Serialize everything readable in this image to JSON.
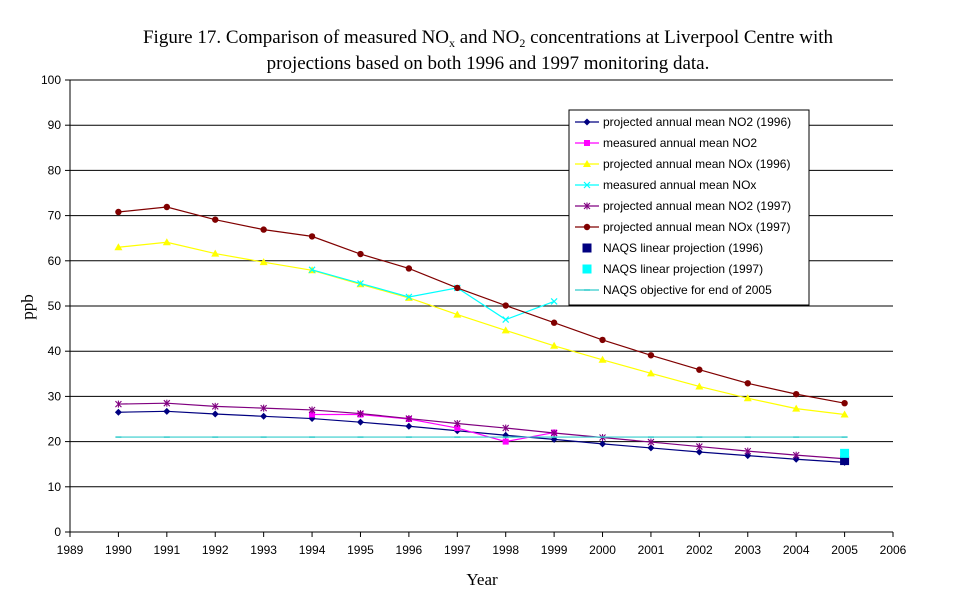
{
  "chart_data": {
    "type": "line",
    "title_line1_prefix": "Figure 17. Comparison of measured NO",
    "title_line1_sub1": "x",
    "title_line1_mid": " and NO",
    "title_line1_sub2": "2",
    "title_line1_suffix": " concentrations at Liverpool Centre with",
    "title_line2": "projections based on both 1996 and 1997 monitoring data.",
    "xlabel": "Year",
    "ylabel": "ppb",
    "xlim": [
      1989,
      2006
    ],
    "ylim": [
      0,
      100
    ],
    "xticks": [
      "1989",
      "1990",
      "1991",
      "1992",
      "1993",
      "1994",
      "1995",
      "1996",
      "1997",
      "1998",
      "1999",
      "2000",
      "2001",
      "2002",
      "2003",
      "2004",
      "2005",
      "2006"
    ],
    "yticks": [
      "0",
      "10",
      "20",
      "30",
      "40",
      "50",
      "60",
      "70",
      "80",
      "90",
      "100"
    ],
    "grid": "horizontal",
    "legend_position": "right",
    "series": [
      {
        "name": "projected annual mean NO2 (1996)",
        "color": "#000080",
        "marker": "diamond",
        "x": [
          1990,
          1991,
          1992,
          1993,
          1994,
          1995,
          1996,
          1997,
          1998,
          1999,
          2000,
          2001,
          2002,
          2003,
          2004,
          2005
        ],
        "y": [
          26.5,
          26.7,
          26.1,
          25.6,
          25.1,
          24.3,
          23.4,
          22.4,
          21.4,
          20.5,
          19.5,
          18.6,
          17.7,
          16.9,
          16.1,
          15.4
        ]
      },
      {
        "name": "measured annual mean NO2",
        "color": "#ff00ff",
        "marker": "square",
        "x": [
          1994,
          1995,
          1996,
          1997,
          1998,
          1999
        ],
        "y": [
          26.0,
          26.0,
          25.0,
          23.0,
          20.0,
          22.0
        ]
      },
      {
        "name": "projected annual mean NOx (1996)",
        "color": "#ffff00",
        "marker": "triangle",
        "x": [
          1990,
          1991,
          1992,
          1993,
          1994,
          1995,
          1996,
          1997,
          1998,
          1999,
          2000,
          2001,
          2002,
          2003,
          2004,
          2005
        ],
        "y": [
          63.0,
          64.1,
          61.6,
          59.7,
          57.9,
          54.8,
          51.8,
          48.1,
          44.6,
          41.2,
          38.1,
          35.1,
          32.2,
          29.6,
          27.3,
          26.0
        ]
      },
      {
        "name": "measured annual mean NOx",
        "color": "#00ffff",
        "marker": "x",
        "x": [
          1994,
          1995,
          1996,
          1997,
          1998,
          1999
        ],
        "y": [
          58.0,
          55.0,
          52.0,
          54.0,
          47.0,
          51.0
        ]
      },
      {
        "name": "projected annual mean NO2 (1997)",
        "color": "#800080",
        "marker": "star",
        "x": [
          1990,
          1991,
          1992,
          1993,
          1994,
          1995,
          1996,
          1997,
          1998,
          1999,
          2000,
          2001,
          2002,
          2003,
          2004,
          2005
        ],
        "y": [
          28.3,
          28.5,
          27.8,
          27.4,
          27.0,
          26.2,
          25.1,
          24.0,
          23.0,
          21.9,
          20.9,
          19.9,
          18.9,
          17.9,
          17.0,
          16.2
        ]
      },
      {
        "name": "projected annual mean NOx (1997)",
        "color": "#800000",
        "marker": "circle",
        "x": [
          1990,
          1991,
          1992,
          1993,
          1994,
          1995,
          1996,
          1997,
          1998,
          1999,
          2000,
          2001,
          2002,
          2003,
          2004,
          2005
        ],
        "y": [
          70.8,
          71.9,
          69.1,
          66.9,
          65.4,
          61.5,
          58.3,
          54.0,
          50.1,
          46.3,
          42.5,
          39.1,
          35.9,
          32.9,
          30.5,
          28.5
        ]
      },
      {
        "name": "NAQS linear projection (1996)",
        "color": "#000080",
        "marker": "bigsquare",
        "x": [
          2005
        ],
        "y": [
          15.8
        ]
      },
      {
        "name": "NAQS linear projection (1997)",
        "color": "#00ffff",
        "marker": "bigsquare",
        "x": [
          2005
        ],
        "y": [
          17.4
        ]
      },
      {
        "name": "NAQS objective for end of 2005",
        "color": "#33cccc",
        "marker": "dash",
        "x": [
          1990,
          1991,
          1992,
          1993,
          1994,
          1995,
          1996,
          1997,
          1998,
          1999,
          2000,
          2001,
          2002,
          2003,
          2004,
          2005
        ],
        "y": [
          21,
          21,
          21,
          21,
          21,
          21,
          21,
          21,
          21,
          21,
          21,
          21,
          21,
          21,
          21,
          21
        ]
      }
    ]
  }
}
